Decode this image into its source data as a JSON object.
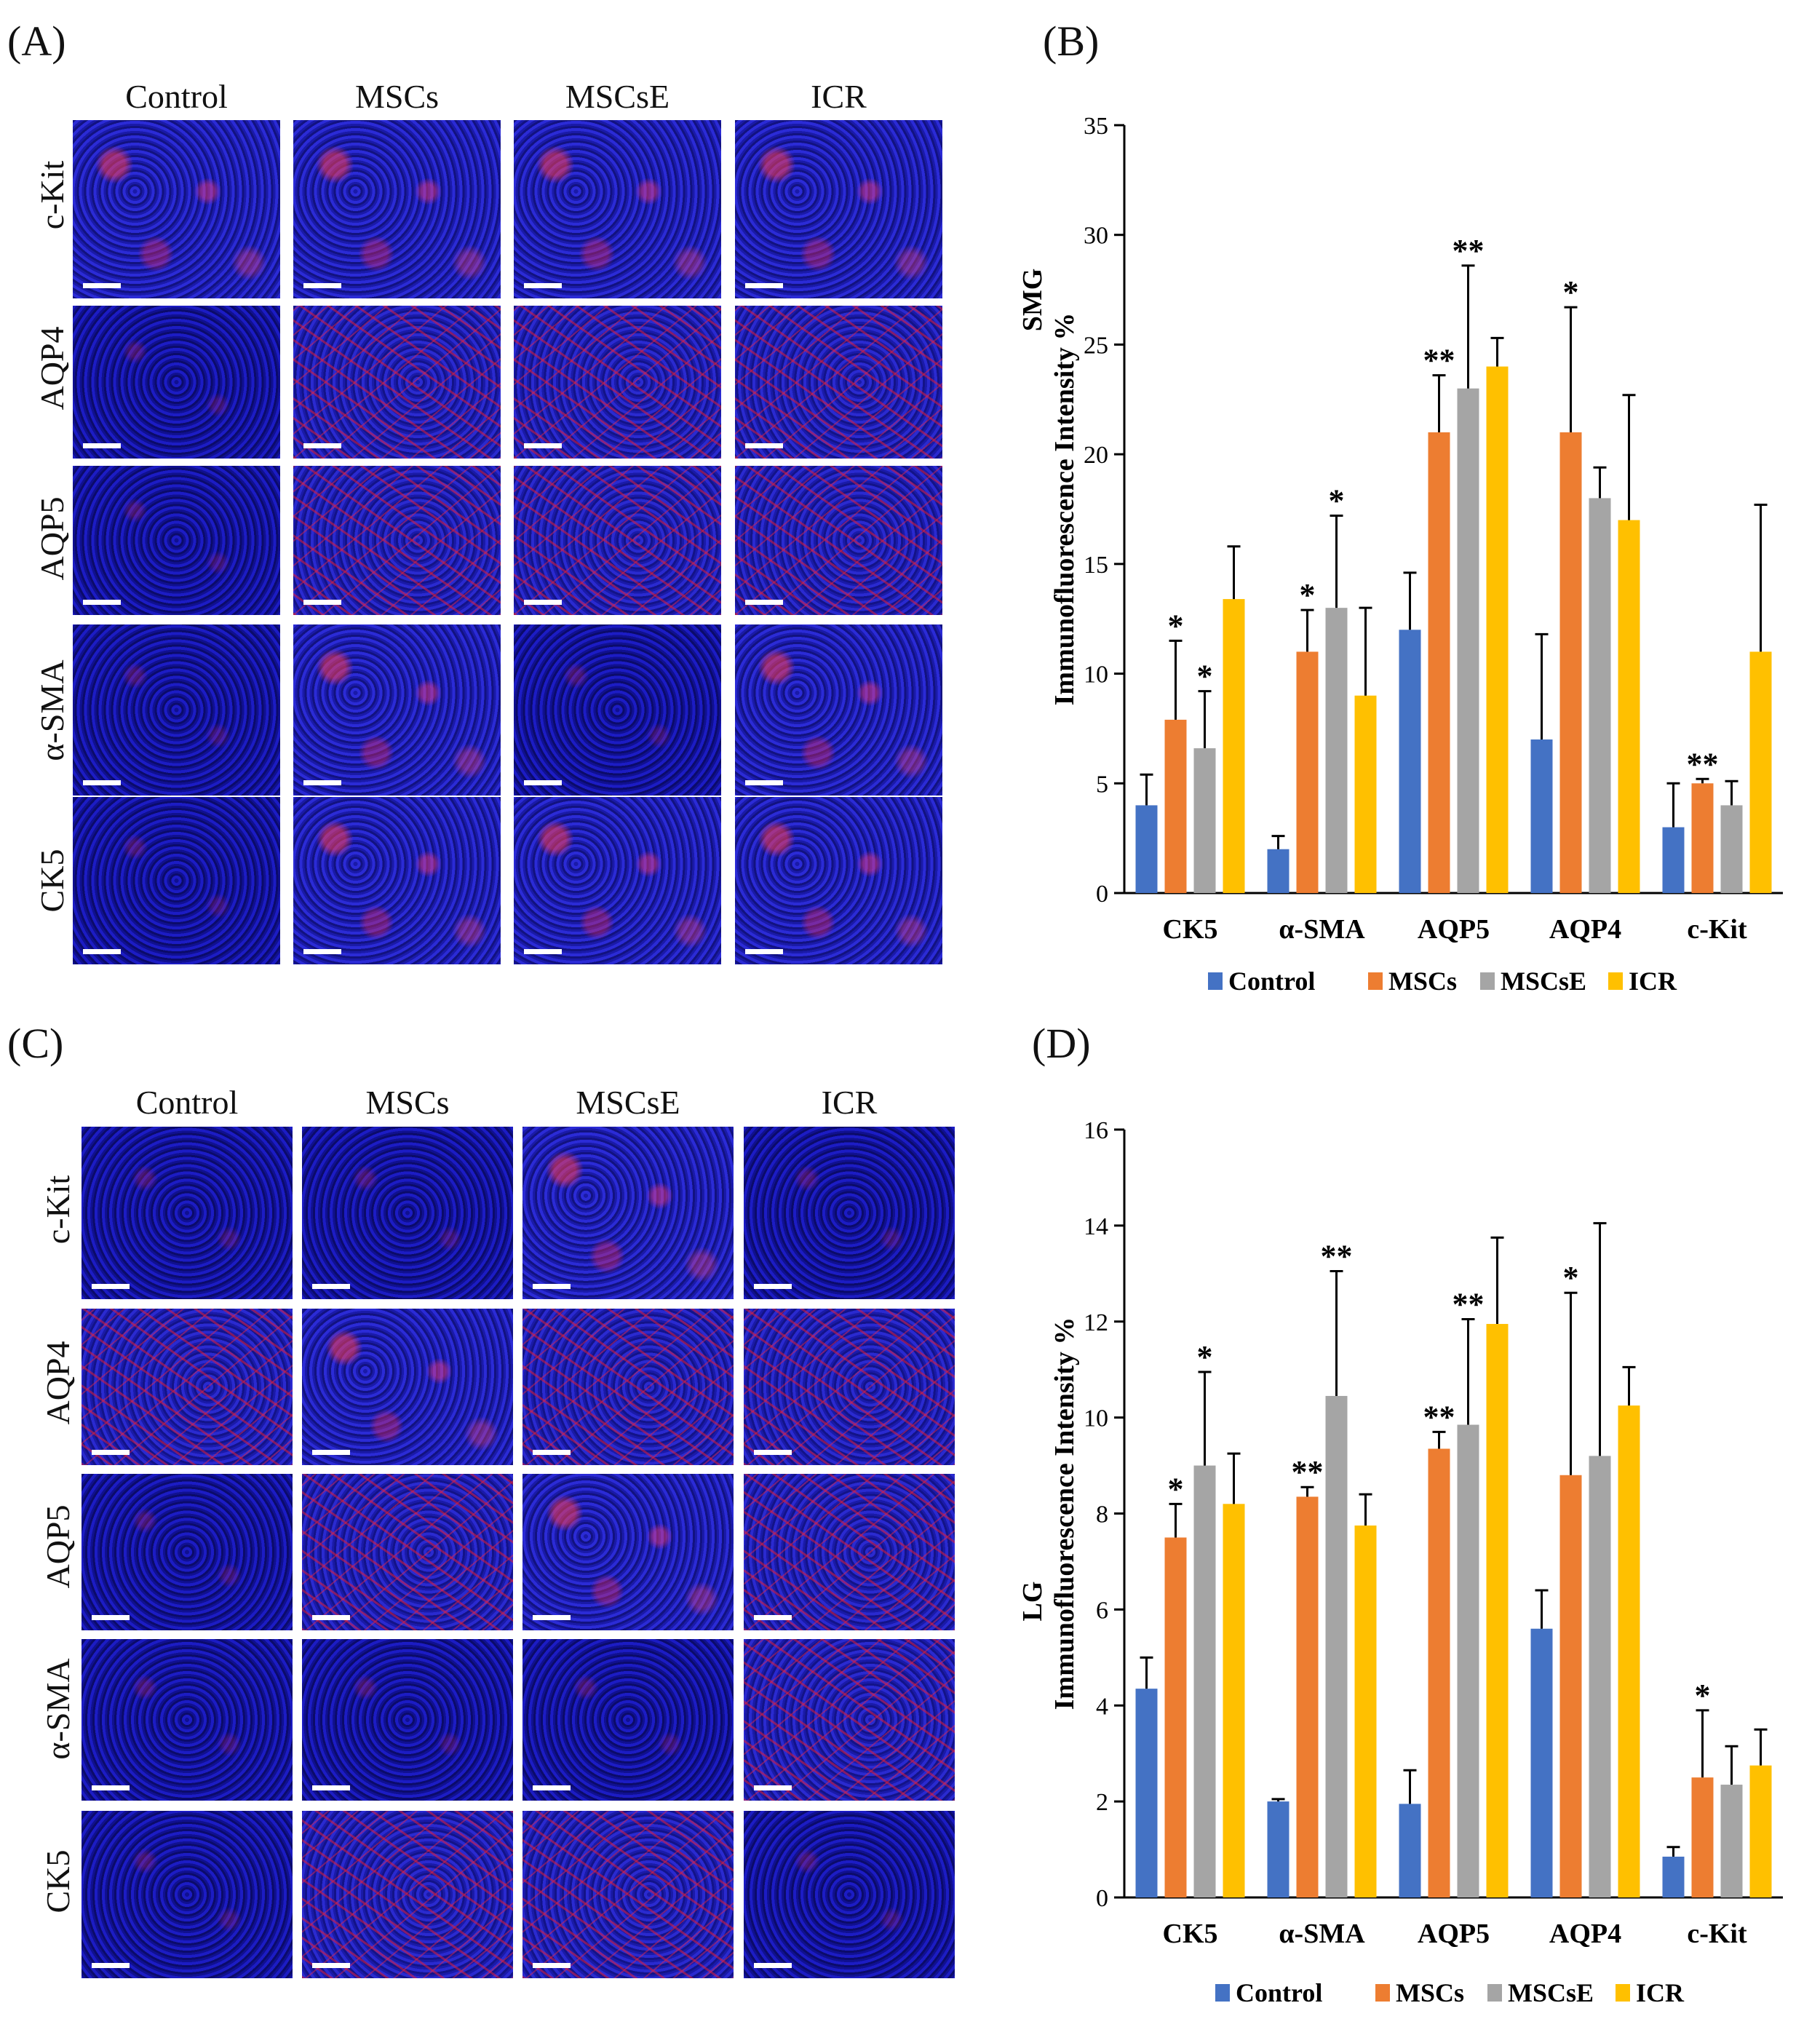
{
  "panels": {
    "a": "(A)",
    "b": "(B)",
    "c": "(C)",
    "d": "(D)"
  },
  "micrographs": {
    "columns": [
      "Control",
      "MSCs",
      "MSCsE",
      "ICR"
    ],
    "rows": [
      "c-Kit",
      "AQP4",
      "AQP5",
      "α-SMA",
      "CK5"
    ]
  },
  "colors": {
    "Control": "#4472C4",
    "MSCs": "#ED7D31",
    "MSCsE": "#A5A5A5",
    "ICR": "#FFC000"
  },
  "chart_data": [
    {
      "type": "bar",
      "panel": "B",
      "tissue": "SMG",
      "ylabel": "Immunofluorescence Intensity %",
      "categories": [
        "CK5",
        "α-SMA",
        "AQP5",
        "AQP4",
        "c-Kit"
      ],
      "ylim": [
        0,
        35
      ],
      "yticks": [
        0,
        5,
        10,
        15,
        20,
        25,
        30,
        35
      ],
      "legend_position": "bottom",
      "series": [
        {
          "name": "Control",
          "values": [
            4.0,
            2.0,
            12.0,
            7.0,
            3.0
          ],
          "errors": [
            1.4,
            0.6,
            2.6,
            4.8,
            2.0
          ],
          "significance": [
            "",
            "",
            "",
            "",
            ""
          ]
        },
        {
          "name": "MSCs",
          "values": [
            7.9,
            11.0,
            21.0,
            21.0,
            5.0
          ],
          "errors": [
            3.6,
            1.9,
            2.6,
            5.7,
            0.2
          ],
          "significance": [
            "*",
            "*",
            "**",
            "*",
            "**"
          ]
        },
        {
          "name": "MSCsE",
          "values": [
            6.6,
            13.0,
            23.0,
            18.0,
            4.0
          ],
          "errors": [
            2.6,
            4.2,
            5.6,
            1.4,
            1.1
          ],
          "significance": [
            "*",
            "*",
            "**",
            "",
            ""
          ]
        },
        {
          "name": "ICR",
          "values": [
            13.4,
            9.0,
            24.0,
            17.0,
            11.0
          ],
          "errors": [
            2.4,
            4.0,
            1.3,
            5.7,
            6.7
          ],
          "significance": [
            "",
            "",
            "",
            "",
            ""
          ]
        }
      ]
    },
    {
      "type": "bar",
      "panel": "D",
      "tissue": "LG",
      "ylabel": "Immunofluorescence Intensity %",
      "categories": [
        "CK5",
        "α-SMA",
        "AQP5",
        "AQP4",
        "c-Kit"
      ],
      "ylim": [
        0,
        16
      ],
      "yticks": [
        0,
        2,
        4,
        6,
        8,
        10,
        12,
        14,
        16
      ],
      "legend_position": "bottom",
      "series": [
        {
          "name": "Control",
          "values": [
            4.35,
            2.0,
            1.95,
            5.6,
            0.85
          ],
          "errors": [
            0.65,
            0.05,
            0.7,
            0.8,
            0.2
          ],
          "significance": [
            "",
            "",
            "",
            "",
            ""
          ]
        },
        {
          "name": "MSCs",
          "values": [
            7.5,
            8.35,
            9.35,
            8.8,
            2.5
          ],
          "errors": [
            0.7,
            0.2,
            0.35,
            3.8,
            1.4
          ],
          "significance": [
            "*",
            "**",
            "**",
            "*",
            "*"
          ]
        },
        {
          "name": "MSCsE",
          "values": [
            9.0,
            10.45,
            9.85,
            9.2,
            2.35
          ],
          "errors": [
            1.95,
            2.6,
            2.2,
            4.85,
            0.8
          ],
          "significance": [
            "*",
            "**",
            "**",
            "",
            ""
          ]
        },
        {
          "name": "ICR",
          "values": [
            8.2,
            7.75,
            11.95,
            10.25,
            2.75
          ],
          "errors": [
            1.05,
            0.65,
            1.8,
            0.8,
            0.75
          ],
          "significance": [
            "",
            "",
            "",
            "",
            ""
          ]
        }
      ]
    }
  ]
}
